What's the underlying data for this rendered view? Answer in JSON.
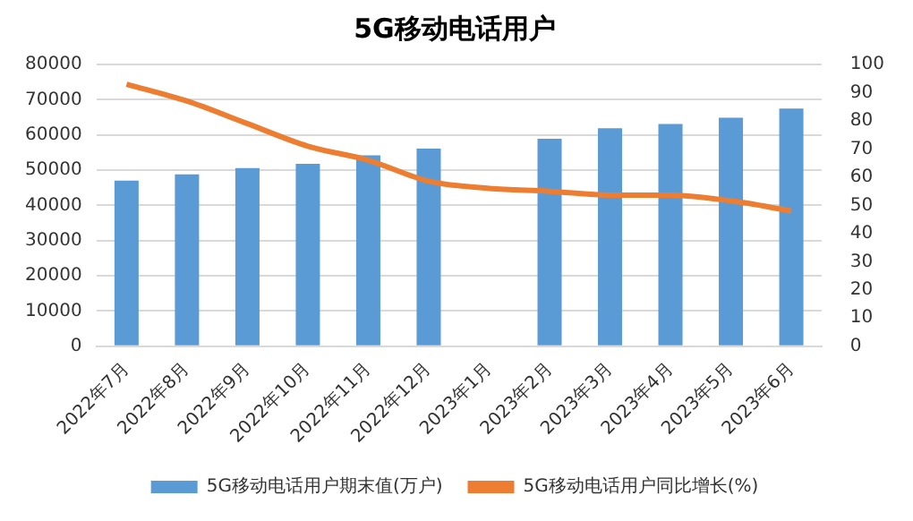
{
  "chart_data": {
    "type": "bar",
    "title": "5G移动电话用户",
    "categories": [
      "2022年7月",
      "2022年8月",
      "2022年9月",
      "2022年10月",
      "2022年11月",
      "2022年12月",
      "2023年1月",
      "2023年2月",
      "2023年3月",
      "2023年4月",
      "2023年5月",
      "2023年6月"
    ],
    "series": [
      {
        "name": "5G移动电话用户期末值(万户)",
        "color": "#5b9bd5",
        "values": [
          47000,
          48800,
          50600,
          51800,
          54200,
          56100,
          null,
          58900,
          61900,
          63100,
          64900,
          67500
        ]
      },
      {
        "name": "5G移动电话用户同比增长(%)",
        "type": "line",
        "axis": "y2",
        "color": "#ed7d31",
        "values": [
          93,
          87,
          79,
          71,
          66,
          58.6,
          56,
          55,
          53.6,
          53.6,
          51.6,
          48
        ]
      }
    ],
    "ylim": [
      0,
      80000
    ],
    "yticks": [
      0,
      10000,
      20000,
      30000,
      40000,
      50000,
      60000,
      70000,
      80000
    ],
    "y2lim": [
      0,
      100
    ],
    "y2ticks": [
      0,
      10,
      20,
      30,
      40,
      50,
      60,
      70,
      80,
      90,
      100
    ],
    "grid": "y",
    "legend": "bottom",
    "marker": "none",
    "line_style": "solid"
  }
}
